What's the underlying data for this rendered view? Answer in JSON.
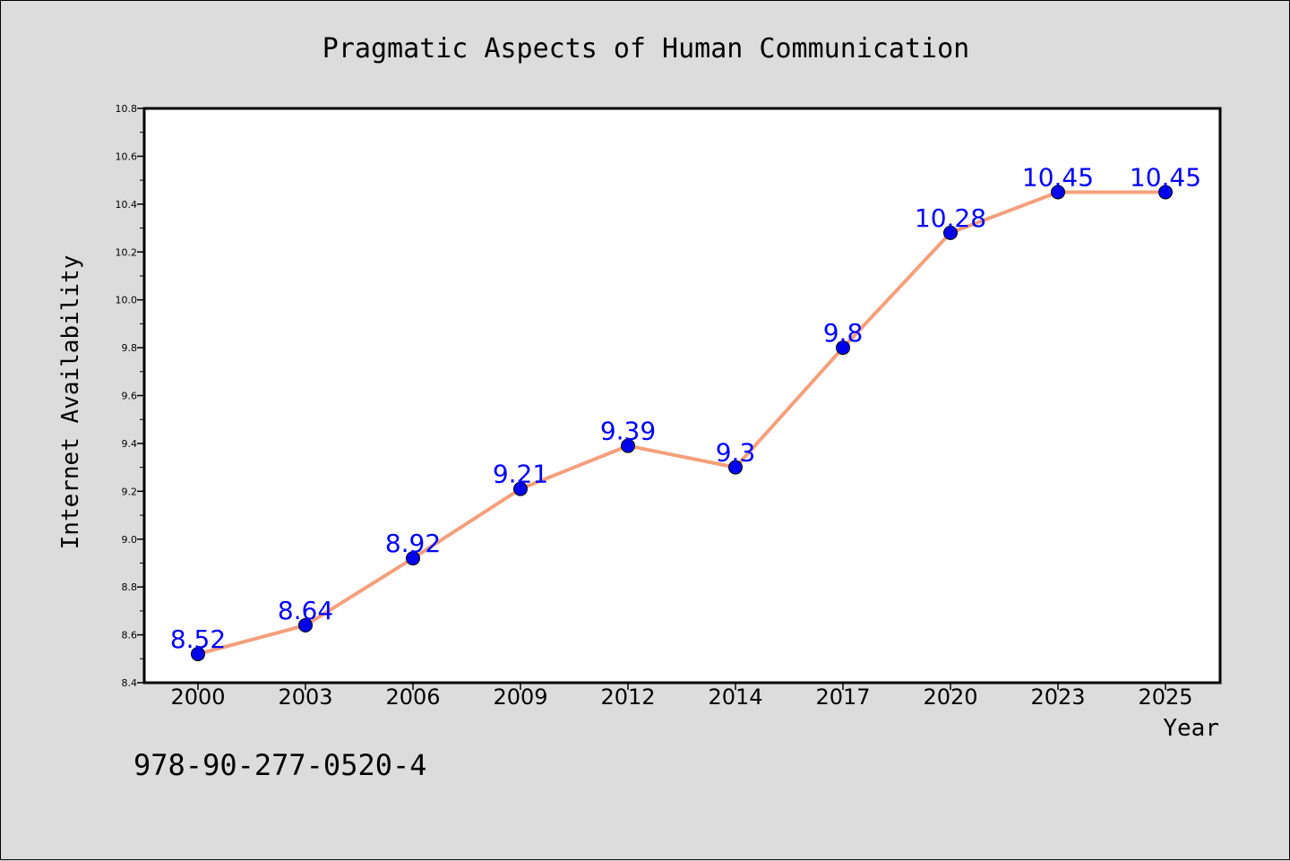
{
  "chart_data": {
    "type": "line",
    "title": "Pragmatic Aspects of Human Communication",
    "xlabel": "Year",
    "ylabel": "Internet Availability",
    "categories": [
      "2000",
      "2003",
      "2006",
      "2009",
      "2012",
      "2014",
      "2017",
      "2020",
      "2023",
      "2025"
    ],
    "series": [
      {
        "values": [
          8.52,
          8.64,
          8.92,
          9.21,
          9.39,
          9.3,
          9.8,
          10.28,
          10.45,
          10.45
        ],
        "data_labels": [
          "8.52",
          "8.64",
          "8.92",
          "9.21",
          "9.39",
          "9.3",
          "9.8",
          "10.28",
          "10.45",
          "10.45"
        ],
        "line_color": "#f4a07c",
        "marker_color": "#0000ee"
      }
    ],
    "ylim": [
      8.4,
      10.8
    ],
    "yticks": [
      "8.4",
      "8.6",
      "8.8",
      "9.0",
      "9.2",
      "9.4",
      "9.6",
      "9.8",
      "10.0",
      "10.2",
      "10.4",
      "10.6",
      "10.8"
    ],
    "grid": false,
    "legend": "none"
  },
  "footer_text": "978-90-277-0520-4",
  "colors": {
    "background": "#dcdcdc",
    "plot_background": "#ffffff",
    "label_color": "#0000ff"
  }
}
